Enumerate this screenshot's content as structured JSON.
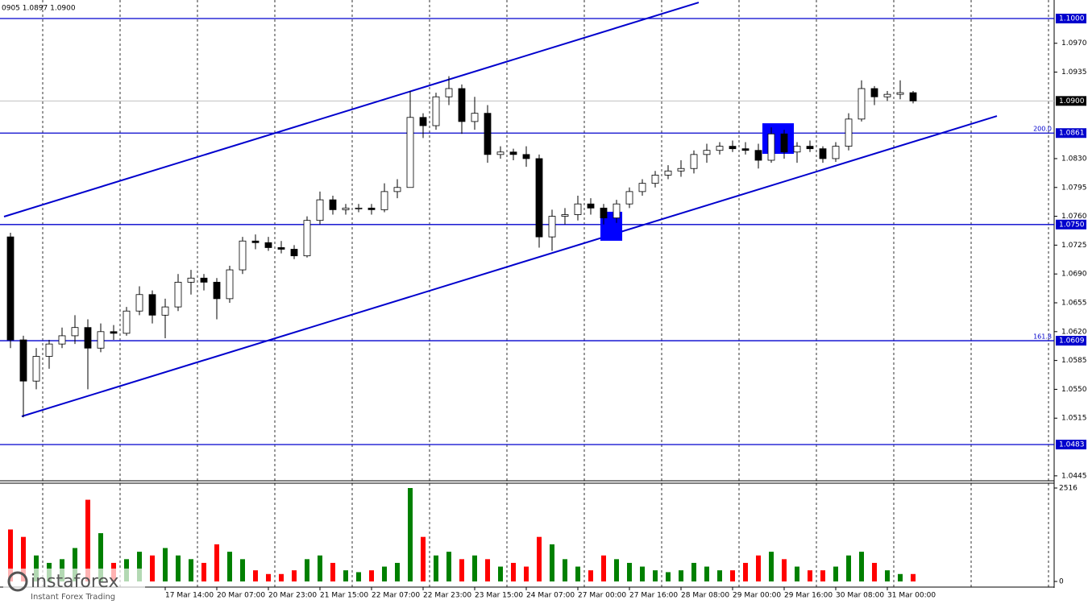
{
  "chart_data": {
    "type": "candlestick",
    "header": "0905 1.0897 1.0900",
    "logo": {
      "name": "instaforex",
      "tagline": "Instant Forex Trading"
    },
    "categories": [
      null,
      null,
      null,
      null,
      null,
      null,
      null,
      null,
      null,
      null,
      null,
      null,
      "17 Mar 14:00",
      null,
      null,
      null,
      "20 Mar 07:00",
      null,
      null,
      null,
      "20 Mar 23:00",
      null,
      null,
      null,
      "21 Mar 15:00",
      null,
      null,
      null,
      "22 Mar 07:00",
      null,
      null,
      null,
      "22 Mar 23:00",
      null,
      null,
      null,
      "23 Mar 15:00",
      null,
      null,
      null,
      "24 Mar 07:00",
      null,
      null,
      null,
      "27 Mar 00:00",
      null,
      null,
      null,
      "27 Mar 16:00",
      null,
      null,
      null,
      "28 Mar 08:00",
      null,
      null,
      null,
      "29 Mar 00:00",
      null,
      null,
      null,
      "29 Mar 16:00",
      null,
      null,
      null,
      "30 Mar 08:00",
      null,
      null,
      null,
      "31 Mar 00:00",
      null,
      null
    ],
    "open": [
      1.0735,
      1.061,
      1.056,
      1.059,
      1.0605,
      1.0615,
      1.0625,
      1.06,
      1.062,
      1.0618,
      1.0645,
      1.0665,
      1.064,
      1.065,
      1.068,
      1.0685,
      1.068,
      1.066,
      1.0695,
      1.073,
      1.0728,
      1.0722,
      1.072,
      1.0712,
      1.0755,
      1.078,
      1.0768,
      1.077,
      1.077,
      1.0768,
      1.079,
      1.0795,
      1.088,
      1.087,
      1.0905,
      1.0915,
      1.0875,
      1.0885,
      1.0835,
      1.0838,
      1.0835,
      1.083,
      1.0735,
      1.076,
      1.0762,
      1.0775,
      1.077,
      1.0758,
      1.0775,
      1.079,
      1.08,
      1.081,
      1.0815,
      1.0818,
      1.0835,
      1.084,
      1.0845,
      1.0842,
      1.084,
      1.0828,
      1.086,
      1.0838,
      1.0845,
      1.0842,
      1.083,
      1.0845,
      1.0878,
      1.0915,
      1.0905,
      1.0908,
      1.091
    ],
    "high": [
      1.074,
      1.0615,
      1.06,
      1.061,
      1.0625,
      1.064,
      1.0635,
      1.063,
      1.0628,
      1.065,
      1.0675,
      1.067,
      1.066,
      1.069,
      1.0695,
      1.069,
      1.0685,
      1.07,
      1.0735,
      1.0738,
      1.0735,
      1.073,
      1.0725,
      1.076,
      1.079,
      1.0785,
      1.0775,
      1.0775,
      1.0775,
      1.08,
      1.0805,
      1.0912,
      1.0885,
      1.091,
      1.093,
      1.092,
      1.0905,
      1.0895,
      1.0845,
      1.0842,
      1.0845,
      1.0835,
      1.0768,
      1.077,
      1.0785,
      1.0782,
      1.0775,
      1.078,
      1.0795,
      1.0805,
      1.0815,
      1.0822,
      1.0828,
      1.084,
      1.0848,
      1.085,
      1.0852,
      1.085,
      1.0848,
      1.0868,
      1.0865,
      1.085,
      1.0852,
      1.0845,
      1.085,
      1.0885,
      1.0925,
      1.0918,
      1.0912,
      1.0925,
      1.0912
    ],
    "low": [
      1.06,
      1.0516,
      1.055,
      1.0575,
      1.06,
      1.0605,
      1.055,
      1.0595,
      1.061,
      1.0615,
      1.064,
      1.063,
      1.0612,
      1.0645,
      1.0665,
      1.067,
      1.0635,
      1.0655,
      1.069,
      1.072,
      1.0718,
      1.0715,
      1.0708,
      1.071,
      1.075,
      1.0762,
      1.0762,
      1.0765,
      1.0762,
      1.0765,
      1.0782,
      1.0795,
      1.0855,
      1.0865,
      1.0895,
      1.086,
      1.0865,
      1.0825,
      1.083,
      1.0828,
      1.082,
      1.0722,
      1.0718,
      1.075,
      1.0755,
      1.0762,
      1.075,
      1.0752,
      1.077,
      1.0785,
      1.0795,
      1.0805,
      1.0808,
      1.0812,
      1.0825,
      1.0835,
      1.0838,
      1.0835,
      1.0818,
      1.0825,
      1.083,
      1.0825,
      1.0838,
      1.0825,
      1.0826,
      1.084,
      1.0875,
      1.0895,
      1.09,
      1.0902,
      1.0897
    ],
    "close": [
      1.061,
      1.056,
      1.059,
      1.0605,
      1.0615,
      1.0625,
      1.06,
      1.062,
      1.0618,
      1.0645,
      1.0665,
      1.064,
      1.065,
      1.068,
      1.0685,
      1.068,
      1.066,
      1.0695,
      1.073,
      1.0728,
      1.0722,
      1.072,
      1.0712,
      1.0755,
      1.078,
      1.0768,
      1.077,
      1.077,
      1.0768,
      1.079,
      1.0795,
      1.088,
      1.087,
      1.0905,
      1.0915,
      1.0875,
      1.0885,
      1.0835,
      1.0838,
      1.0835,
      1.083,
      1.0735,
      1.076,
      1.0762,
      1.0775,
      1.077,
      1.0758,
      1.0775,
      1.079,
      1.08,
      1.081,
      1.0815,
      1.0818,
      1.0835,
      1.084,
      1.0845,
      1.0842,
      1.084,
      1.0828,
      1.086,
      1.0838,
      1.0845,
      1.0842,
      1.083,
      1.0845,
      1.0878,
      1.0915,
      1.0905,
      1.0908,
      1.091,
      1.09
    ],
    "volume": [
      1400,
      1200,
      700,
      500,
      600,
      900,
      2200,
      1300,
      500,
      600,
      800,
      700,
      900,
      700,
      600,
      500,
      1000,
      800,
      600,
      300,
      200,
      200,
      300,
      600,
      700,
      500,
      300,
      250,
      300,
      400,
      500,
      2516,
      1200,
      700,
      800,
      600,
      700,
      600,
      400,
      500,
      400,
      1200,
      1000,
      600,
      400,
      300,
      700,
      600,
      500,
      400,
      300,
      250,
      300,
      500,
      400,
      300,
      300,
      500,
      700,
      800,
      600,
      400,
      300,
      300,
      400,
      700,
      800,
      500,
      300,
      200,
      200
    ],
    "up_color": "#ffffff",
    "down_color": "#000000",
    "volume_up_color": "#008000",
    "volume_down_color": "#ff0000",
    "ylim": [
      1.0439,
      1.10225
    ],
    "yticks": [
      {
        "value": 1.097,
        "label": "1.0970"
      },
      {
        "value": 1.0935,
        "label": "1.0935"
      },
      {
        "value": 1.083,
        "label": "1.0830"
      },
      {
        "value": 1.0795,
        "label": "1.0795"
      },
      {
        "value": 1.076,
        "label": "1.0760"
      },
      {
        "value": 1.0725,
        "label": "1.0725"
      },
      {
        "value": 1.069,
        "label": "1.0690"
      },
      {
        "value": 1.0655,
        "label": "1.0655"
      },
      {
        "value": 1.062,
        "label": "1.0620"
      },
      {
        "value": 1.0585,
        "label": "1.0585"
      },
      {
        "value": 1.055,
        "label": "1.0550"
      },
      {
        "value": 1.0515,
        "label": "1.0515"
      },
      {
        "value": 1.0445,
        "label": "1.0445"
      }
    ],
    "levels": [
      {
        "value": 1.1,
        "label": "1.1000"
      },
      {
        "value": 1.0861,
        "label": "1.0861",
        "fib": "200.0"
      },
      {
        "value": 1.075,
        "label": "1.0750"
      },
      {
        "value": 1.0609,
        "label": "1.0609",
        "fib": "161.8"
      },
      {
        "value": 1.0483,
        "label": "1.0483"
      }
    ],
    "level_color": "#0000cd",
    "current_price": {
      "value": 1.09,
      "label": "1.0900"
    },
    "trendlines": [
      {
        "x": [
          -0.5,
          53.375
        ],
        "y": [
          1.07596,
          1.10195
        ]
      },
      {
        "x": [
          0.875,
          76.5
        ],
        "y": [
          1.05172,
          1.08817
        ]
      }
    ],
    "zones": [
      {
        "x": [
          45.75,
          47.44
        ],
        "y": [
          1.07655,
          1.07303
        ]
      },
      {
        "x": [
          58.31,
          60.75
        ],
        "y": [
          1.08729,
          1.08358
        ]
      }
    ],
    "zone_color": "#0000ff",
    "volume_ylim": [
      0,
      2516
    ],
    "volume_yticks": [
      0,
      2516
    ]
  }
}
